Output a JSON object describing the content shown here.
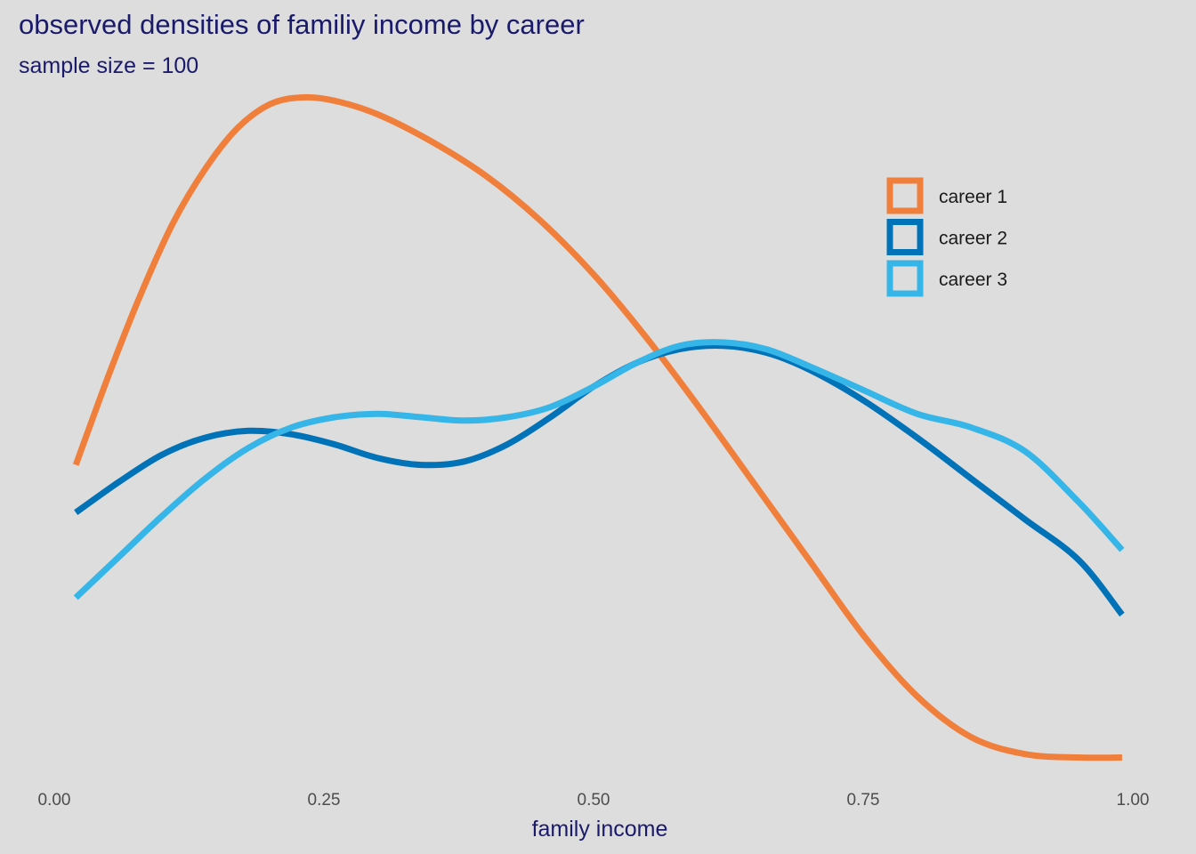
{
  "chart_data": {
    "type": "line",
    "title": "observed densities of familiy income by career",
    "subtitle": "sample size = 100",
    "xlabel": "family income",
    "ylabel": "",
    "xlim": [
      0,
      1
    ],
    "ylim": [
      0,
      2.0
    ],
    "x_ticks": [
      0.0,
      0.25,
      0.5,
      0.75,
      1.0
    ],
    "x_tick_labels": [
      "0.00",
      "0.25",
      "0.50",
      "0.75",
      "1.00"
    ],
    "grid": false,
    "legend_position": "top-right",
    "series": [
      {
        "name": "career 1",
        "color": "#f07f3c",
        "x": [
          0.02,
          0.05,
          0.08,
          0.11,
          0.14,
          0.17,
          0.2,
          0.23,
          0.26,
          0.3,
          0.35,
          0.4,
          0.45,
          0.5,
          0.55,
          0.6,
          0.65,
          0.7,
          0.75,
          0.8,
          0.85,
          0.9,
          0.95,
          0.99
        ],
        "y": [
          0.89,
          1.15,
          1.39,
          1.6,
          1.76,
          1.88,
          1.95,
          1.97,
          1.96,
          1.92,
          1.84,
          1.74,
          1.61,
          1.45,
          1.26,
          1.05,
          0.83,
          0.61,
          0.39,
          0.21,
          0.09,
          0.04,
          0.03,
          0.03
        ]
      },
      {
        "name": "career 2",
        "color": "#0072b8",
        "x": [
          0.02,
          0.06,
          0.1,
          0.14,
          0.18,
          0.22,
          0.26,
          0.3,
          0.34,
          0.38,
          0.42,
          0.46,
          0.5,
          0.54,
          0.58,
          0.62,
          0.66,
          0.7,
          0.75,
          0.8,
          0.85,
          0.9,
          0.95,
          0.99
        ],
        "y": [
          0.75,
          0.84,
          0.92,
          0.97,
          0.99,
          0.98,
          0.95,
          0.91,
          0.89,
          0.9,
          0.95,
          1.03,
          1.12,
          1.19,
          1.23,
          1.24,
          1.22,
          1.17,
          1.08,
          0.97,
          0.85,
          0.73,
          0.61,
          0.45
        ]
      },
      {
        "name": "career 3",
        "color": "#35b5e8",
        "x": [
          0.02,
          0.06,
          0.1,
          0.14,
          0.18,
          0.22,
          0.26,
          0.3,
          0.34,
          0.38,
          0.42,
          0.46,
          0.5,
          0.54,
          0.58,
          0.62,
          0.66,
          0.7,
          0.75,
          0.8,
          0.85,
          0.9,
          0.95,
          0.99
        ],
        "y": [
          0.5,
          0.62,
          0.74,
          0.85,
          0.94,
          1.0,
          1.03,
          1.04,
          1.03,
          1.02,
          1.03,
          1.06,
          1.12,
          1.19,
          1.24,
          1.25,
          1.23,
          1.18,
          1.11,
          1.04,
          1.0,
          0.93,
          0.78,
          0.64
        ]
      }
    ]
  }
}
